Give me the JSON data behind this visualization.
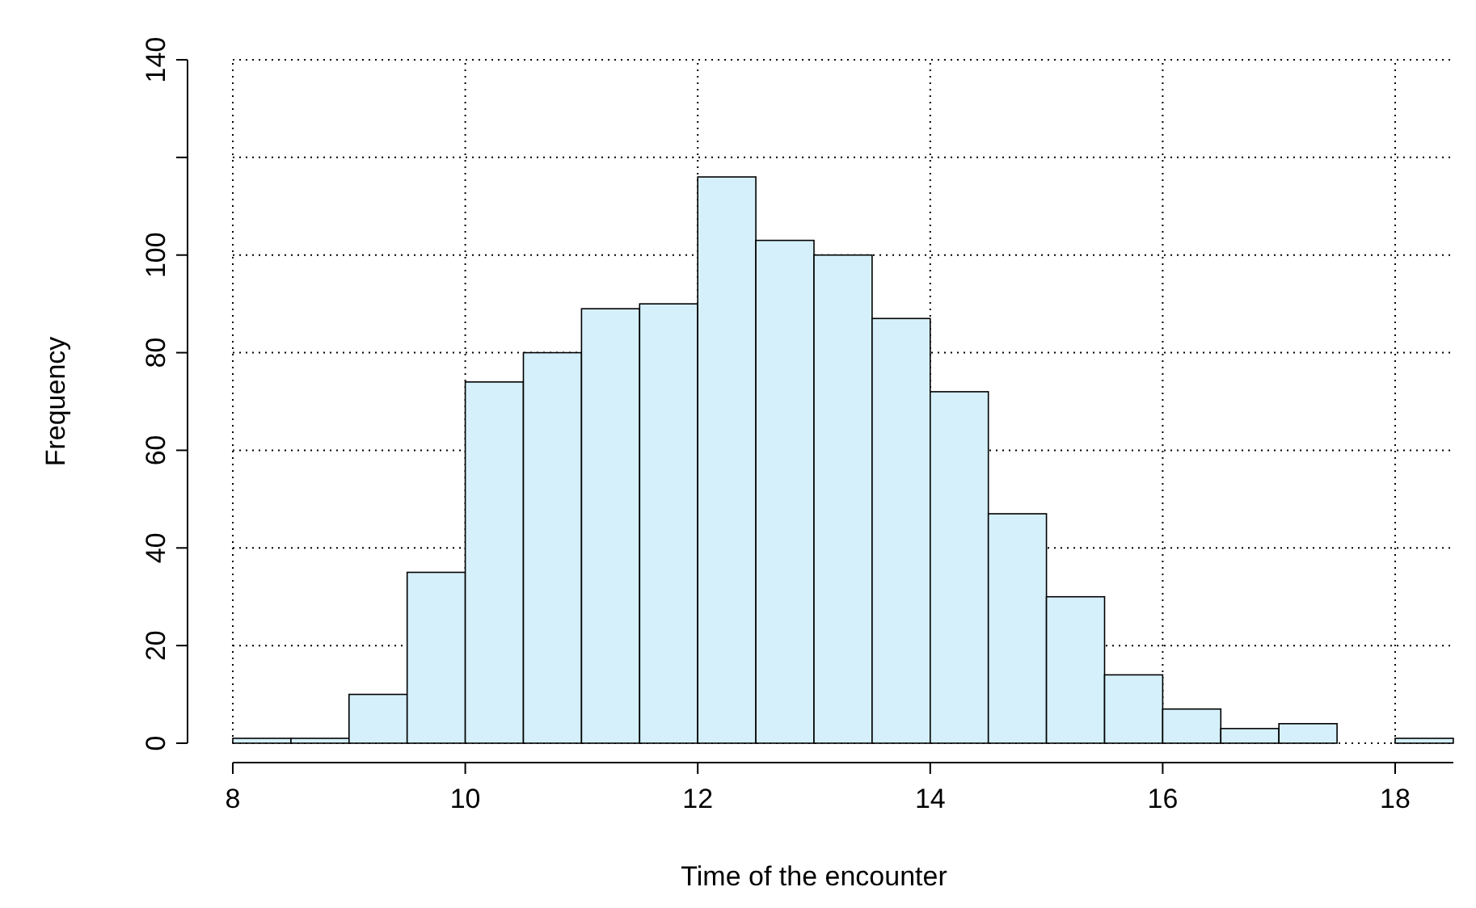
{
  "chart_data": {
    "type": "histogram",
    "xlabel": "Time of the encounter",
    "ylabel": "Frequency",
    "bins": [
      8,
      8.5,
      9,
      9.5,
      10,
      10.5,
      11,
      11.5,
      12,
      12.5,
      13,
      13.5,
      14,
      14.5,
      15,
      15.5,
      16,
      16.5,
      17,
      17.5,
      18,
      18.5
    ],
    "values": [
      1,
      1,
      10,
      35,
      74,
      80,
      89,
      90,
      116,
      103,
      100,
      87,
      72,
      47,
      30,
      14,
      7,
      3,
      4,
      0,
      1
    ],
    "color": "#d5f0fb",
    "xlim": [
      8,
      18.5
    ],
    "xticks": [
      8,
      10,
      12,
      14,
      16,
      18
    ],
    "ylim": [
      0,
      140
    ],
    "yticks": [
      0,
      20,
      40,
      60,
      80,
      100,
      {
        "value": 120,
        "label": null
      },
      140
    ],
    "grid": true
  }
}
